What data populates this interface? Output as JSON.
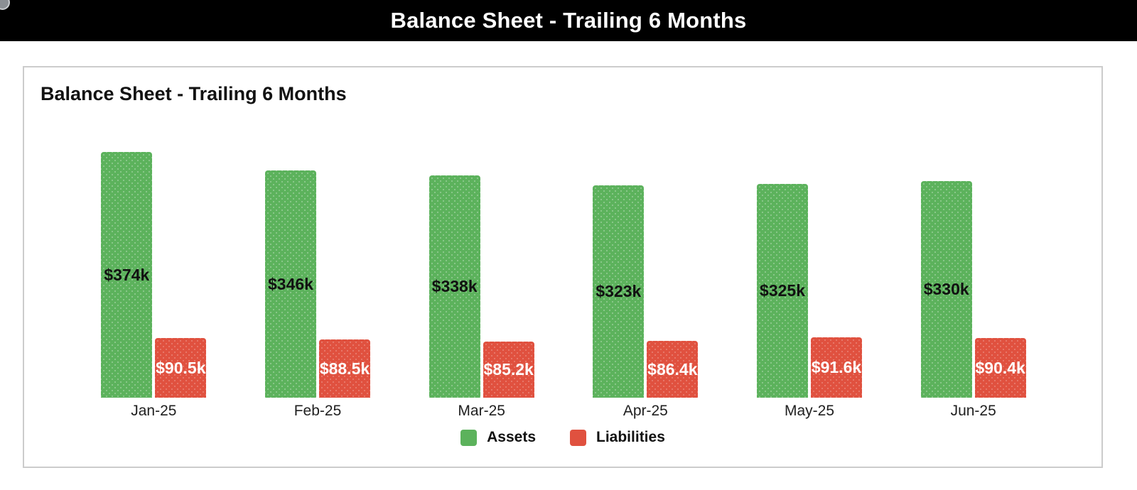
{
  "header": {
    "title": "Balance Sheet - Trailing 6 Months"
  },
  "chart": {
    "title": "Balance Sheet - Trailing 6 Months",
    "legend": [
      {
        "label": "Assets",
        "color": "#5cb25c"
      },
      {
        "label": "Liabilities",
        "color": "#e0513f"
      }
    ]
  },
  "chart_data": {
    "type": "bar",
    "title": "Balance Sheet - Trailing 6 Months",
    "categories": [
      "Jan-25",
      "Feb-25",
      "Mar-25",
      "Apr-25",
      "May-25",
      "Jun-25"
    ],
    "series": [
      {
        "name": "Assets",
        "color": "#5cb25c",
        "values": [
          374,
          346,
          338,
          323,
          325,
          330
        ],
        "labels": [
          "$374k",
          "$346k",
          "$338k",
          "$323k",
          "$325k",
          "$330k"
        ],
        "label_color": "#111111"
      },
      {
        "name": "Liabilities",
        "color": "#e0513f",
        "values": [
          90.5,
          88.5,
          85.2,
          86.4,
          91.6,
          90.4
        ],
        "labels": [
          "$90.5k",
          "$88.5k",
          "$85.2k",
          "$86.4k",
          "$91.6k",
          "$90.4k"
        ],
        "label_color": "#ffffff"
      }
    ],
    "unit": "USD thousands",
    "xlabel": "",
    "ylabel": "",
    "ylim": [
      0,
      400
    ],
    "grid": false,
    "axis_ticks_visible": false,
    "data_labels": "inside-center",
    "legend_position": "bottom-center"
  }
}
